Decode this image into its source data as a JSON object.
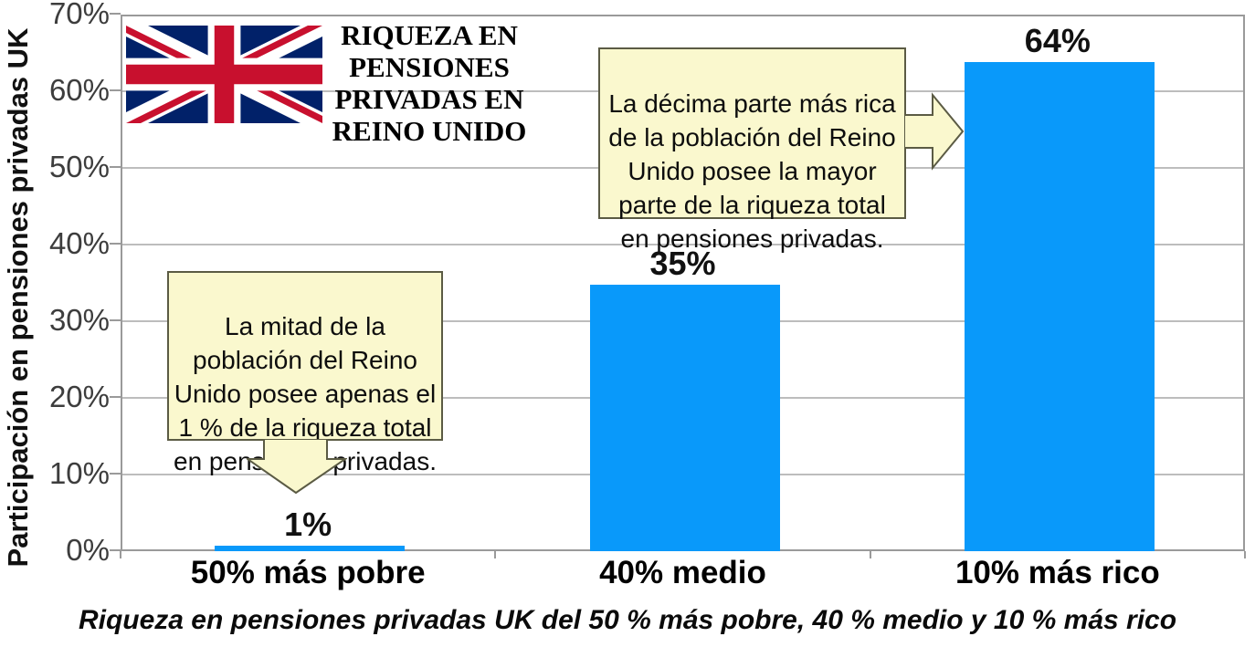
{
  "chart_data": {
    "type": "bar",
    "title": "RIQUEZA EN\nPENSIONES\nPRIVADAS EN\nREINO UNIDO",
    "ylabel": "Participación en pensiones privadas UK",
    "categories": [
      "50% más pobre",
      "40% medio",
      "10% más rico"
    ],
    "values": [
      1,
      35,
      64
    ],
    "bar_labels": [
      "1%",
      "35%",
      "64%"
    ],
    "yticks": [
      "0%",
      "10%",
      "20%",
      "30%",
      "40%",
      "50%",
      "60%",
      "70%"
    ],
    "ytick_values": [
      0,
      10,
      20,
      30,
      40,
      50,
      60,
      70
    ],
    "ylim": [
      0,
      70
    ],
    "grid": true,
    "legend_position": "none",
    "bar_color": "#0999fa",
    "caption": "Riqueza en pensiones privadas UK del 50 % más pobre, 40 % medio y 10 % más rico"
  },
  "annotations": {
    "left_callout": {
      "text": "La mitad de la\npoblación del Reino\nUnido posee apenas el\n1 % de la riqueza total\nen pensiones privadas.",
      "arrow_direction": "down",
      "fill_color": "#faf8ce",
      "border_color": "#5b5b44"
    },
    "right_callout": {
      "text": "La décima parte más rica\nde la población del Reino\nUnido posee la mayor\nparte de la riqueza total\nen pensiones privadas.",
      "arrow_direction": "right",
      "fill_color": "#faf8ce",
      "border_color": "#5b5b44"
    }
  },
  "flag": {
    "name": "uk-flag",
    "colors": {
      "navy": "#012169",
      "red": "#C8102E",
      "white": "#ffffff"
    }
  },
  "style_colors": {
    "gridline": "#bdbdbd",
    "axis_border": "#9a9a9a",
    "background": "#ffffff"
  }
}
